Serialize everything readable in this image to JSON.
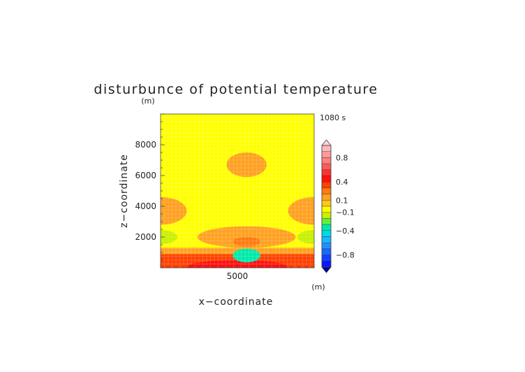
{
  "chart_data": {
    "type": "heatmap",
    "title": "disturbunce of potential temperature",
    "xlabel": "x−coordinate",
    "ylabel": "z−coordinate",
    "x_unit": "(m)",
    "y_unit": "(m)",
    "time_label": "1080 s",
    "xlim": [
      0,
      10000
    ],
    "ylim": [
      0,
      10000
    ],
    "x_ticks": [
      5000
    ],
    "x_tick_labels": [
      "5000"
    ],
    "y_ticks": [
      2000,
      4000,
      6000,
      8000
    ],
    "y_tick_labels": [
      "2000",
      "4000",
      "6000",
      "8000"
    ],
    "background_level": "0 to 0.1",
    "colorbar": {
      "label_values": [
        0.8,
        0.4,
        0.1,
        -0.1,
        -0.4,
        -0.8
      ],
      "label_texts": [
        "0.8",
        "0.4",
        "0.1",
        "−0.1",
        "−0.4",
        "−0.8"
      ],
      "bands": [
        {
          "range": [
            0.9,
            1.0
          ],
          "color": "#ffb8b8"
        },
        {
          "range": [
            0.8,
            0.9
          ],
          "color": "#ff9a9a"
        },
        {
          "range": [
            0.7,
            0.8
          ],
          "color": "#ff8080"
        },
        {
          "range": [
            0.6,
            0.7
          ],
          "color": "#ff5a5a"
        },
        {
          "range": [
            0.5,
            0.6
          ],
          "color": "#ff3030"
        },
        {
          "range": [
            0.4,
            0.5
          ],
          "color": "#ff1010"
        },
        {
          "range": [
            0.3,
            0.4
          ],
          "color": "#ff4000"
        },
        {
          "range": [
            0.2,
            0.3
          ],
          "color": "#ff7a10"
        },
        {
          "range": [
            0.1,
            0.2
          ],
          "color": "#ffa020"
        },
        {
          "range": [
            0.0,
            0.1
          ],
          "color": "#ffc818"
        },
        {
          "range": [
            -0.1,
            0.0
          ],
          "color": "#ffff00"
        },
        {
          "range": [
            -0.2,
            -0.1
          ],
          "color": "#c8f000"
        },
        {
          "range": [
            -0.3,
            -0.2
          ],
          "color": "#60f040"
        },
        {
          "range": [
            -0.4,
            -0.3
          ],
          "color": "#00e8a8"
        },
        {
          "range": [
            -0.5,
            -0.4
          ],
          "color": "#00d8f0"
        },
        {
          "range": [
            -0.6,
            -0.5
          ],
          "color": "#18b8ff"
        },
        {
          "range": [
            -0.7,
            -0.6
          ],
          "color": "#2090ff"
        },
        {
          "range": [
            -0.8,
            -0.7
          ],
          "color": "#1868ff"
        },
        {
          "range": [
            -0.9,
            -0.8
          ],
          "color": "#1040ff"
        },
        {
          "range": [
            -1.0,
            -0.9
          ],
          "color": "#0818ff"
        }
      ],
      "over_color": "#ffd8d8",
      "under_color": "#000090"
    },
    "features": [
      {
        "name": "upper-warm-blob",
        "x": 5600,
        "z": 6700,
        "rx": 1300,
        "rz": 800,
        "level": 0.1
      },
      {
        "name": "left-edge-warm-lobe",
        "x": 0,
        "z": 3700,
        "rx": 1700,
        "rz": 900,
        "level": 0.1
      },
      {
        "name": "right-edge-warm-lobe",
        "x": 10000,
        "z": 3700,
        "rx": 1700,
        "rz": 900,
        "level": 0.1
      },
      {
        "name": "central-warm-band",
        "x": 5600,
        "z": 2000,
        "rx": 3200,
        "rz": 700,
        "level": 0.1
      },
      {
        "name": "central-warm-core",
        "x": 5600,
        "z": 1700,
        "rx": 900,
        "rz": 300,
        "level": 0.2
      },
      {
        "name": "left-edge-cool-lobe",
        "x": 0,
        "z": 2000,
        "rx": 1100,
        "rz": 450,
        "level": -0.2
      },
      {
        "name": "right-edge-cool-lobe",
        "x": 10000,
        "z": 2000,
        "rx": 1100,
        "rz": 450,
        "level": -0.2
      },
      {
        "name": "central-cool-cell",
        "x": 5600,
        "z": 800,
        "rx": 900,
        "rz": 450,
        "level": -0.4
      },
      {
        "name": "surface-warm-layer",
        "x": 5000,
        "z": 300,
        "rx": 5000,
        "rz": 400,
        "level": 0.4
      }
    ]
  }
}
